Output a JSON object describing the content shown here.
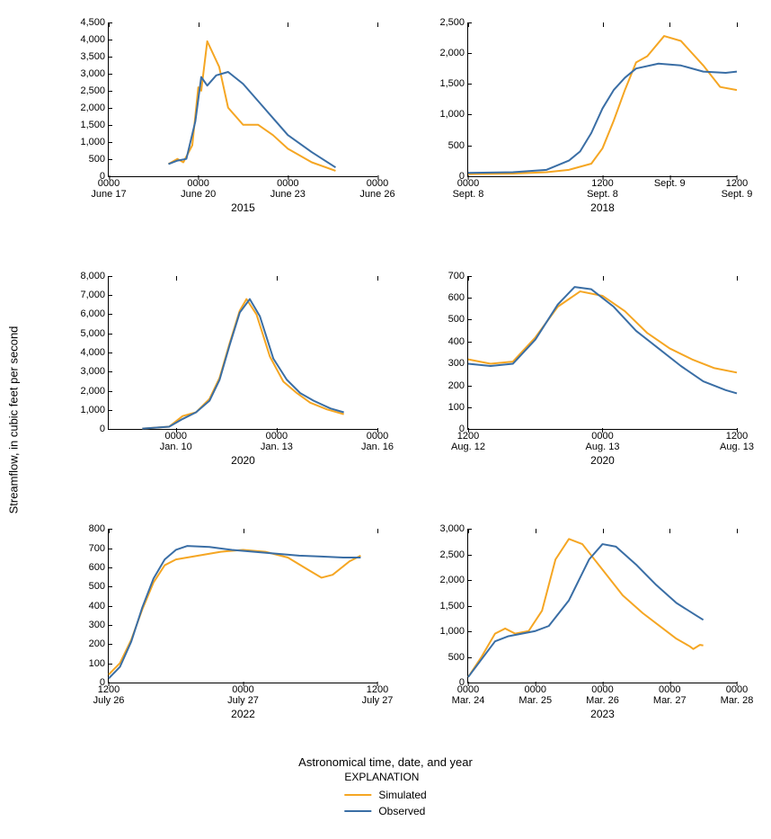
{
  "ylabel": "Streamflow, in cubic feet per second",
  "xlabel": "Astronomical time, date, and year",
  "legend": {
    "title": "EXPLANATION",
    "items": [
      {
        "label": "Simulated",
        "color": "#f5a623"
      },
      {
        "label": "Observed",
        "color": "#3a6ea5"
      }
    ]
  },
  "colors": {
    "simulated": "#f5a623",
    "observed": "#3a6ea5",
    "axis": "#000000",
    "background": "#ffffff"
  },
  "line_width": 2,
  "label_fontsize": 13,
  "tick_fontsize": 11,
  "panels": [
    {
      "year": "2015",
      "ylim": [
        0,
        4500
      ],
      "ytick_step": 500,
      "xlim": [
        0,
        9
      ],
      "xticks": [
        {
          "pos": 0,
          "t": "0000",
          "d": "June 17"
        },
        {
          "pos": 3,
          "t": "0000",
          "d": "June 20"
        },
        {
          "pos": 6,
          "t": "0000",
          "d": "June 23"
        },
        {
          "pos": 9,
          "t": "0000",
          "d": "June 26"
        }
      ],
      "simulated": [
        [
          2.0,
          350
        ],
        [
          2.3,
          500
        ],
        [
          2.5,
          400
        ],
        [
          2.8,
          900
        ],
        [
          3.0,
          2600
        ],
        [
          3.1,
          2500
        ],
        [
          3.3,
          3950
        ],
        [
          3.7,
          3200
        ],
        [
          4.0,
          2000
        ],
        [
          4.5,
          1500
        ],
        [
          5.0,
          1500
        ],
        [
          5.5,
          1200
        ],
        [
          6.0,
          800
        ],
        [
          6.8,
          400
        ],
        [
          7.6,
          150
        ]
      ],
      "observed": [
        [
          2.0,
          350
        ],
        [
          2.3,
          450
        ],
        [
          2.6,
          500
        ],
        [
          2.9,
          1600
        ],
        [
          3.1,
          2900
        ],
        [
          3.3,
          2650
        ],
        [
          3.6,
          2950
        ],
        [
          4.0,
          3050
        ],
        [
          4.5,
          2700
        ],
        [
          5.0,
          2200
        ],
        [
          5.5,
          1700
        ],
        [
          6.0,
          1200
        ],
        [
          6.8,
          700
        ],
        [
          7.6,
          250
        ]
      ]
    },
    {
      "year": "2018",
      "ylim": [
        0,
        2500
      ],
      "ytick_step": 500,
      "xlim": [
        0,
        24
      ],
      "xticks": [
        {
          "pos": 0,
          "t": "0000",
          "d": "Sept. 8"
        },
        {
          "pos": 12,
          "t": "1200",
          "d": "Sept. 8"
        },
        {
          "pos": 18,
          "t": "",
          "d": "Sept. 9"
        },
        {
          "pos": 24,
          "t": "1200",
          "d": "Sept. 9"
        }
      ],
      "simulated": [
        [
          0,
          30
        ],
        [
          4,
          40
        ],
        [
          7,
          60
        ],
        [
          9,
          100
        ],
        [
          11,
          200
        ],
        [
          12,
          450
        ],
        [
          13,
          900
        ],
        [
          14,
          1400
        ],
        [
          15,
          1850
        ],
        [
          16,
          1950
        ],
        [
          17.5,
          2280
        ],
        [
          19,
          2200
        ],
        [
          21,
          1800
        ],
        [
          22.5,
          1450
        ],
        [
          24,
          1400
        ]
      ],
      "observed": [
        [
          0,
          50
        ],
        [
          4,
          60
        ],
        [
          7,
          100
        ],
        [
          9,
          250
        ],
        [
          10,
          400
        ],
        [
          11,
          700
        ],
        [
          12,
          1100
        ],
        [
          13,
          1400
        ],
        [
          14,
          1600
        ],
        [
          15,
          1750
        ],
        [
          17,
          1830
        ],
        [
          19,
          1800
        ],
        [
          21,
          1700
        ],
        [
          23,
          1680
        ],
        [
          24,
          1700
        ]
      ]
    },
    {
      "year": "2020",
      "ylim": [
        0,
        8000
      ],
      "ytick_step": 1000,
      "xlim": [
        0,
        8
      ],
      "xticks": [
        {
          "pos": 2,
          "t": "0000",
          "d": "Jan. 10"
        },
        {
          "pos": 5,
          "t": "0000",
          "d": "Jan. 13"
        },
        {
          "pos": 8,
          "t": "0000",
          "d": "Jan. 16"
        }
      ],
      "simulated": [
        [
          1.0,
          50
        ],
        [
          1.8,
          150
        ],
        [
          2.2,
          700
        ],
        [
          2.6,
          900
        ],
        [
          3.0,
          1600
        ],
        [
          3.3,
          2700
        ],
        [
          3.6,
          4500
        ],
        [
          3.9,
          6200
        ],
        [
          4.1,
          6800
        ],
        [
          4.4,
          6000
        ],
        [
          4.8,
          3800
        ],
        [
          5.2,
          2500
        ],
        [
          5.6,
          1900
        ],
        [
          6.0,
          1400
        ],
        [
          6.5,
          1050
        ],
        [
          7.0,
          800
        ]
      ],
      "observed": [
        [
          1.0,
          50
        ],
        [
          1.8,
          150
        ],
        [
          2.2,
          550
        ],
        [
          2.6,
          900
        ],
        [
          3.0,
          1500
        ],
        [
          3.3,
          2600
        ],
        [
          3.6,
          4400
        ],
        [
          3.9,
          6100
        ],
        [
          4.2,
          6800
        ],
        [
          4.5,
          5900
        ],
        [
          4.9,
          3700
        ],
        [
          5.3,
          2600
        ],
        [
          5.7,
          1900
        ],
        [
          6.1,
          1500
        ],
        [
          6.6,
          1100
        ],
        [
          7.0,
          900
        ]
      ]
    },
    {
      "year": "2020",
      "ylim": [
        0,
        700
      ],
      "ytick_step": 100,
      "xlim": [
        0,
        24
      ],
      "xticks": [
        {
          "pos": 0,
          "t": "1200",
          "d": "Aug. 12"
        },
        {
          "pos": 12,
          "t": "0000",
          "d": "Aug. 13"
        },
        {
          "pos": 24,
          "t": "1200",
          "d": "Aug. 13"
        }
      ],
      "simulated": [
        [
          0,
          320
        ],
        [
          2,
          300
        ],
        [
          4,
          310
        ],
        [
          6,
          420
        ],
        [
          8,
          560
        ],
        [
          10,
          630
        ],
        [
          12,
          610
        ],
        [
          14,
          540
        ],
        [
          16,
          440
        ],
        [
          18,
          370
        ],
        [
          20,
          320
        ],
        [
          22,
          280
        ],
        [
          24,
          260
        ]
      ],
      "observed": [
        [
          0,
          300
        ],
        [
          2,
          290
        ],
        [
          4,
          300
        ],
        [
          6,
          410
        ],
        [
          8,
          570
        ],
        [
          9.5,
          650
        ],
        [
          11,
          640
        ],
        [
          13,
          560
        ],
        [
          15,
          450
        ],
        [
          17,
          370
        ],
        [
          19,
          290
        ],
        [
          21,
          220
        ],
        [
          23,
          180
        ],
        [
          24,
          165
        ]
      ]
    },
    {
      "year": "2022",
      "ylim": [
        0,
        800
      ],
      "ytick_step": 100,
      "xlim": [
        0,
        24
      ],
      "xticks": [
        {
          "pos": 0,
          "t": "1200",
          "d": "July 26"
        },
        {
          "pos": 12,
          "t": "0000",
          "d": "July 27"
        },
        {
          "pos": 24,
          "t": "1200",
          "d": "July 27"
        }
      ],
      "simulated": [
        [
          0,
          40
        ],
        [
          1,
          100
        ],
        [
          2,
          220
        ],
        [
          3,
          380
        ],
        [
          4,
          520
        ],
        [
          5,
          610
        ],
        [
          6,
          640
        ],
        [
          8,
          660
        ],
        [
          10,
          680
        ],
        [
          12,
          690
        ],
        [
          14,
          680
        ],
        [
          16,
          650
        ],
        [
          18,
          580
        ],
        [
          19,
          545
        ],
        [
          20,
          560
        ],
        [
          21.5,
          630
        ],
        [
          22.5,
          660
        ]
      ],
      "observed": [
        [
          0,
          20
        ],
        [
          1,
          80
        ],
        [
          2,
          210
        ],
        [
          3,
          390
        ],
        [
          4,
          540
        ],
        [
          5,
          640
        ],
        [
          6,
          690
        ],
        [
          7,
          710
        ],
        [
          9,
          705
        ],
        [
          11,
          690
        ],
        [
          13,
          680
        ],
        [
          15,
          670
        ],
        [
          17,
          660
        ],
        [
          19,
          655
        ],
        [
          21,
          650
        ],
        [
          22.5,
          650
        ]
      ]
    },
    {
      "year": "2023",
      "ylim": [
        0,
        3000
      ],
      "ytick_step": 500,
      "xlim": [
        0,
        4
      ],
      "xticks": [
        {
          "pos": 0,
          "t": "0000",
          "d": "Mar. 24"
        },
        {
          "pos": 1,
          "t": "0000",
          "d": "Mar. 25"
        },
        {
          "pos": 2,
          "t": "0000",
          "d": "Mar. 26"
        },
        {
          "pos": 3,
          "t": "0000",
          "d": "Mar. 27"
        },
        {
          "pos": 4,
          "t": "0000",
          "d": "Mar. 28"
        }
      ],
      "simulated": [
        [
          0,
          100
        ],
        [
          0.2,
          500
        ],
        [
          0.4,
          950
        ],
        [
          0.55,
          1050
        ],
        [
          0.7,
          950
        ],
        [
          0.9,
          1000
        ],
        [
          1.1,
          1400
        ],
        [
          1.3,
          2400
        ],
        [
          1.5,
          2800
        ],
        [
          1.7,
          2700
        ],
        [
          2.0,
          2200
        ],
        [
          2.3,
          1700
        ],
        [
          2.6,
          1350
        ],
        [
          2.9,
          1050
        ],
        [
          3.1,
          850
        ],
        [
          3.3,
          700
        ],
        [
          3.35,
          650
        ],
        [
          3.45,
          730
        ],
        [
          3.5,
          720
        ]
      ],
      "observed": [
        [
          0,
          100
        ],
        [
          0.2,
          450
        ],
        [
          0.4,
          800
        ],
        [
          0.6,
          900
        ],
        [
          0.8,
          950
        ],
        [
          1.0,
          1000
        ],
        [
          1.2,
          1100
        ],
        [
          1.5,
          1600
        ],
        [
          1.8,
          2400
        ],
        [
          2.0,
          2700
        ],
        [
          2.2,
          2650
        ],
        [
          2.5,
          2300
        ],
        [
          2.8,
          1900
        ],
        [
          3.1,
          1550
        ],
        [
          3.4,
          1300
        ],
        [
          3.5,
          1220
        ]
      ]
    }
  ]
}
